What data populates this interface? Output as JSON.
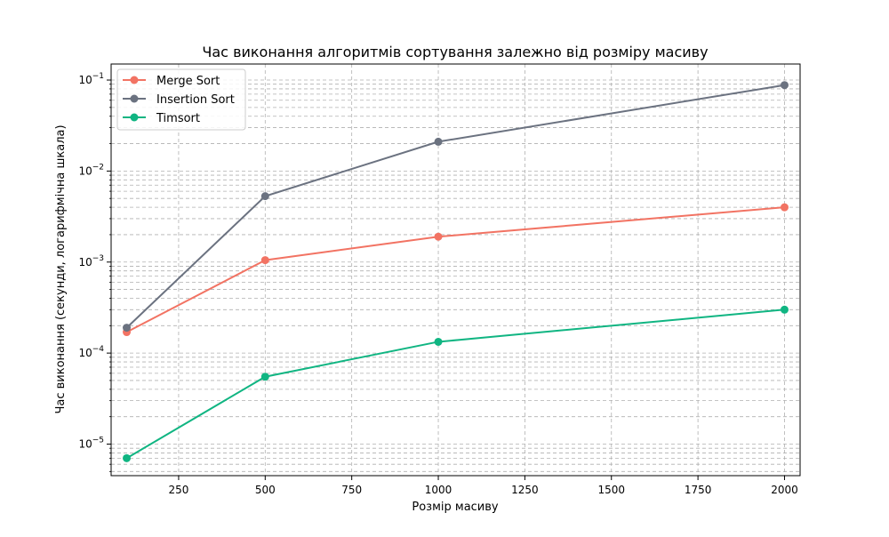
{
  "chart_data": {
    "type": "line",
    "title": "Час виконання алгоритмів сортування залежно від розміру масиву",
    "xlabel": "Розмір масиву",
    "ylabel": "Час виконання (секунди, логарифмічна шкала)",
    "xscale": "linear",
    "yscale": "log",
    "xlim": [
      55,
      2045
    ],
    "ylim": [
      4.5e-06,
      0.15
    ],
    "x_ticks": [
      250,
      500,
      750,
      1000,
      1250,
      1500,
      1750,
      2000
    ],
    "y_ticks": [
      {
        "value": 1e-05,
        "base": "10",
        "exp": "−5"
      },
      {
        "value": 0.0001,
        "base": "10",
        "exp": "−4"
      },
      {
        "value": 0.001,
        "base": "10",
        "exp": "−3"
      },
      {
        "value": 0.01,
        "base": "10",
        "exp": "−2"
      },
      {
        "value": 0.1,
        "base": "10",
        "exp": "−1"
      }
    ],
    "grid": true,
    "grid_minor": true,
    "legend_position": "top-left",
    "x": [
      100,
      500,
      1000,
      2000
    ],
    "series": [
      {
        "name": "Merge Sort",
        "color": "#f27363",
        "values": [
          0.00017,
          0.00105,
          0.0019,
          0.004
        ]
      },
      {
        "name": "Insertion Sort",
        "color": "#6b7280",
        "values": [
          0.00019,
          0.0053,
          0.021,
          0.088
        ]
      },
      {
        "name": "Timsort",
        "color": "#10b582",
        "values": [
          7e-06,
          5.5e-05,
          0.000133,
          0.0003
        ]
      }
    ]
  }
}
